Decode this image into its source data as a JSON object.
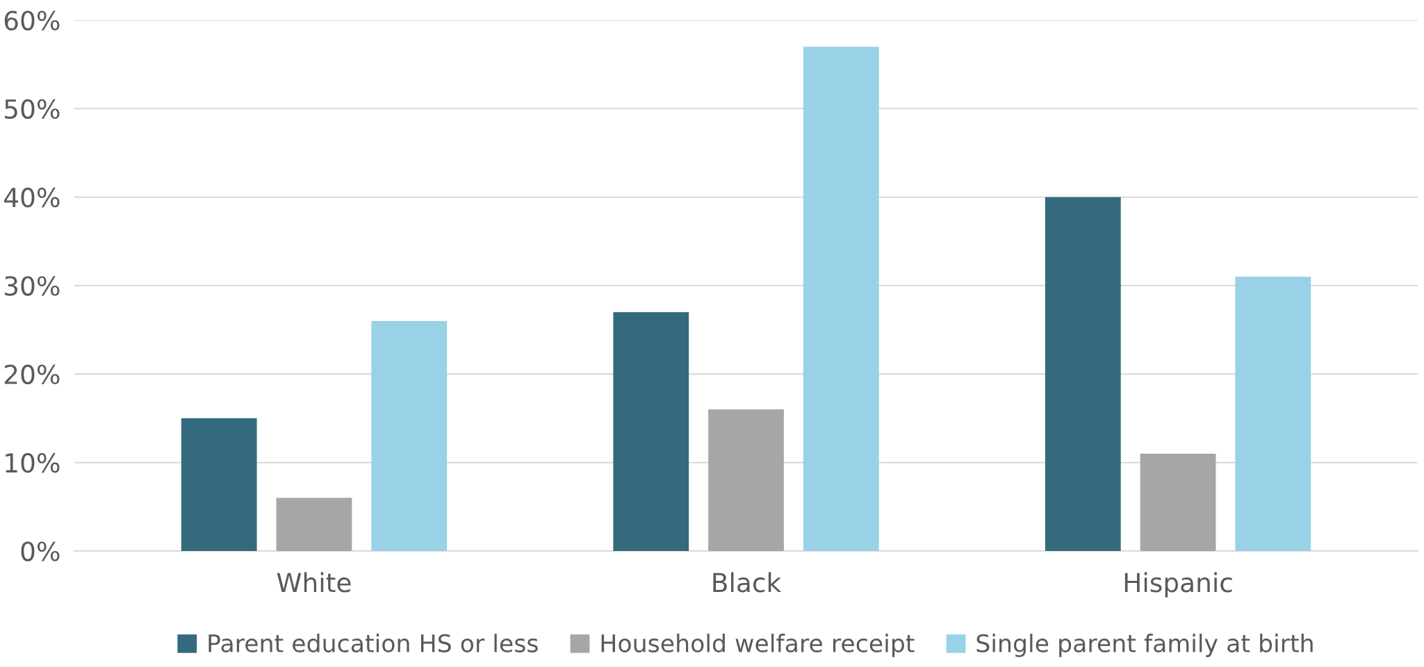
{
  "chart_data": {
    "type": "bar",
    "categories": [
      "White",
      "Black",
      "Hispanic"
    ],
    "series": [
      {
        "name": "Parent education HS or less",
        "color": "#336a7d",
        "values": [
          15,
          27,
          40
        ]
      },
      {
        "name": "Household welfare receipt",
        "color": "#a6a6a6",
        "values": [
          6,
          16,
          11
        ]
      },
      {
        "name": "Single parent family at birth",
        "color": "#99d1e6",
        "values": [
          26,
          57,
          31
        ]
      }
    ],
    "ylim": [
      0,
      60
    ],
    "yticks": [
      {
        "value": 0,
        "label": "0%"
      },
      {
        "value": 10,
        "label": "10%"
      },
      {
        "value": 20,
        "label": "20%"
      },
      {
        "value": 30,
        "label": "30%"
      },
      {
        "value": 40,
        "label": "40%"
      },
      {
        "value": 50,
        "label": "50%"
      },
      {
        "value": 60,
        "label": "60%"
      }
    ],
    "grid": "y",
    "legend": "bottom"
  }
}
